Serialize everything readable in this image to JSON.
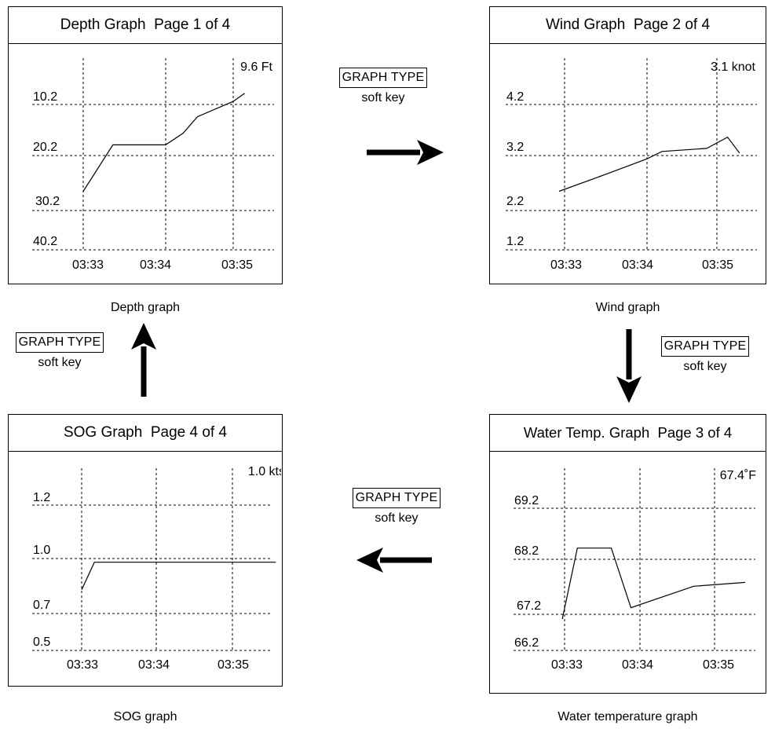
{
  "panels": {
    "depth": {
      "title": "Depth Graph  Page 1 of 4",
      "caption": "Depth graph",
      "readout": "9.6 Ft",
      "y_labels": [
        "10.2",
        "20.2",
        "30.2",
        "40.2"
      ],
      "x_labels": [
        "03:33",
        "03:34",
        "03:35"
      ]
    },
    "wind": {
      "title": "Wind Graph  Page 2 of 4",
      "caption": "Wind graph",
      "readout": "3.1 knot",
      "y_labels": [
        "4.2",
        "3.2",
        "2.2",
        "1.2"
      ],
      "x_labels": [
        "03:33",
        "03:34",
        "03:35"
      ]
    },
    "water": {
      "title": "Water Temp. Graph  Page 3 of 4",
      "caption": "Water temperature graph",
      "readout": "67.4˚F",
      "y_labels": [
        "69.2",
        "68.2",
        "67.2",
        "66.2"
      ],
      "x_labels": [
        "03:33",
        "03:34",
        "03:35"
      ]
    },
    "sog": {
      "title": "SOG Graph  Page 4 of 4",
      "caption": "SOG graph",
      "readout": "1.0 kts",
      "y_labels": [
        "1.2",
        "1.0",
        "0.7",
        "0.5"
      ],
      "x_labels": [
        "03:33",
        "03:34",
        "03:35"
      ]
    }
  },
  "soft_keys": {
    "top": {
      "label": "GRAPH TYPE",
      "sub": "soft key"
    },
    "right": {
      "label": "GRAPH TYPE",
      "sub": "soft key"
    },
    "bottom": {
      "label": "GRAPH TYPE",
      "sub": "soft key"
    },
    "left": {
      "label": "GRAPH TYPE",
      "sub": "soft key"
    }
  },
  "chart_data": [
    {
      "type": "line",
      "series": [
        {
          "values": [
            {
              "x": 0.0,
              "y": 26.7
            },
            {
              "x": 0.36,
              "y": 18.1
            },
            {
              "x": 1.0,
              "y": 18.1
            },
            {
              "x": 1.26,
              "y": 15.8
            },
            {
              "x": 1.47,
              "y": 12.6
            },
            {
              "x": 2.0,
              "y": 9.6
            },
            {
              "x": 2.17,
              "y": 8.0
            }
          ]
        }
      ],
      "xticks": [
        "03:33",
        "03:34",
        "03:35"
      ],
      "ylim": [
        10.2,
        40.2
      ],
      "y_inverted": true,
      "grid": true
    },
    {
      "type": "line",
      "series": [
        {
          "values": [
            {
              "x": 0.0,
              "y": 2.55
            },
            {
              "x": 0.55,
              "y": 2.87
            },
            {
              "x": 1.0,
              "y": 3.14
            },
            {
              "x": 1.25,
              "y": 3.28
            },
            {
              "x": 2.0,
              "y": 3.34
            },
            {
              "x": 2.35,
              "y": 3.56
            },
            {
              "x": 2.55,
              "y": 3.25
            }
          ]
        }
      ],
      "xticks": [
        "03:33",
        "03:34",
        "03:35"
      ],
      "ylim": [
        1.2,
        4.2
      ],
      "grid": true
    },
    {
      "type": "line",
      "series": [
        {
          "values": [
            {
              "x": -0.03,
              "y": 67.07
            },
            {
              "x": 0.17,
              "y": 68.42
            },
            {
              "x": 0.62,
              "y": 68.42
            },
            {
              "x": 0.88,
              "y": 67.32
            },
            {
              "x": 1.72,
              "y": 67.71
            },
            {
              "x": 2.41,
              "y": 67.78
            }
          ]
        }
      ],
      "xticks": [
        "03:33",
        "03:34",
        "03:35"
      ],
      "ylim": [
        66.2,
        69.2
      ],
      "grid": true
    },
    {
      "type": "line",
      "series": [
        {
          "values": [
            {
              "x": 0.0,
              "y": 0.83
            },
            {
              "x": 0.17,
              "y": 0.98
            },
            {
              "x": 2.57,
              "y": 0.98
            }
          ]
        }
      ],
      "xticks": [
        "03:33",
        "03:34",
        "03:35"
      ],
      "yticks": [
        1.2,
        1.0,
        0.7,
        0.5
      ],
      "grid": true
    }
  ]
}
